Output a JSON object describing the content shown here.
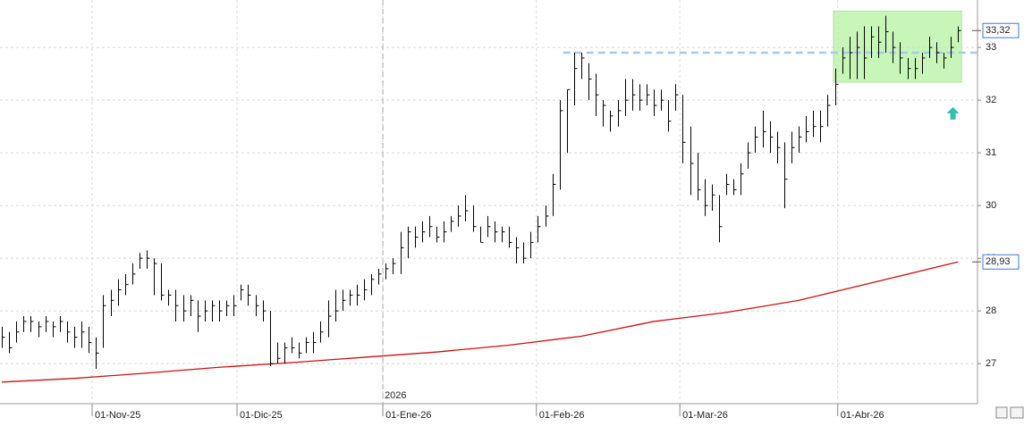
{
  "chart_data": {
    "type": "ohlc",
    "color": "#000000",
    "grid": true,
    "xlim": [
      -0.247,
      134.69
    ],
    "ylim": [
      26.24,
      33.9
    ],
    "yticks": [
      27,
      28,
      29,
      30,
      31,
      32,
      33
    ],
    "xticks": [
      {
        "value": 12.47,
        "label": "01-Nov-25"
      },
      {
        "value": 32.47,
        "label": "01-Dic-25"
      },
      {
        "value": 52.6,
        "label": "01-Ene-26"
      },
      {
        "value": 73.8,
        "label": "01-Feb-26"
      },
      {
        "value": 93.6,
        "label": "01-Mar-26"
      },
      {
        "value": 115.4,
        "label": "01-Abr-26"
      }
    ],
    "year_marker": {
      "value": 52.6,
      "label": "2026"
    },
    "x": [
      0,
      1,
      2,
      3,
      4,
      5,
      6,
      7,
      8,
      9,
      10,
      11,
      12,
      13,
      14,
      15,
      16,
      17,
      18,
      19,
      20,
      21,
      22,
      23,
      24,
      25,
      26,
      27,
      28,
      29,
      30,
      31,
      32,
      33,
      34,
      35,
      36,
      37,
      38,
      39,
      40,
      41,
      42,
      43,
      44,
      45,
      46,
      47,
      48,
      49,
      50,
      51,
      52,
      53,
      54,
      55,
      56,
      57,
      58,
      59,
      60,
      61,
      62,
      63,
      64,
      65,
      66,
      67,
      68,
      69,
      70,
      71,
      72,
      73,
      74,
      75,
      76,
      77,
      78,
      79,
      80,
      81,
      82,
      83,
      84,
      85,
      86,
      87,
      88,
      89,
      90,
      91,
      92,
      93,
      94,
      95,
      96,
      97,
      98,
      99,
      100,
      101,
      102,
      103,
      104,
      105,
      106,
      107,
      108,
      109,
      110,
      111,
      112,
      113,
      114,
      115,
      116,
      117,
      118,
      119,
      120,
      121,
      122,
      123,
      124,
      125,
      126,
      127,
      128,
      129,
      130,
      131,
      132
    ],
    "high": [
      27.7,
      27.6,
      27.8,
      27.9,
      27.9,
      27.8,
      27.9,
      27.8,
      27.9,
      27.8,
      27.7,
      27.8,
      27.7,
      27.5,
      28.3,
      28.4,
      28.6,
      28.7,
      28.9,
      29.1,
      29.15,
      29.0,
      28.9,
      28.4,
      28.4,
      28.3,
      28.3,
      28.2,
      28.2,
      28.2,
      28.2,
      28.2,
      28.3,
      28.5,
      28.5,
      28.3,
      28.2,
      28.0,
      27.4,
      27.4,
      27.5,
      27.4,
      27.5,
      27.6,
      27.8,
      28.2,
      28.4,
      28.4,
      28.4,
      28.5,
      28.6,
      28.7,
      28.8,
      28.9,
      29.0,
      29.5,
      29.6,
      29.6,
      29.7,
      29.8,
      29.6,
      29.7,
      29.8,
      30.0,
      30.2,
      30.0,
      29.6,
      29.8,
      29.7,
      29.6,
      29.6,
      29.4,
      29.3,
      29.5,
      29.8,
      30.0,
      30.6,
      32.0,
      32.2,
      32.9,
      32.9,
      32.7,
      32.5,
      32.0,
      31.8,
      32.0,
      32.4,
      32.4,
      32.3,
      32.3,
      32.2,
      32.2,
      32.0,
      32.3,
      32.1,
      31.5,
      31.0,
      30.5,
      30.4,
      30.2,
      30.6,
      30.5,
      30.8,
      31.2,
      31.5,
      31.8,
      31.6,
      31.4,
      31.2,
      31.4,
      31.5,
      31.7,
      31.8,
      31.8,
      32.1,
      32.6,
      33.0,
      33.2,
      33.3,
      33.4,
      33.4,
      33.4,
      33.6,
      33.3,
      33.1,
      32.8,
      32.8,
      32.9,
      33.2,
      33.1,
      32.9,
      33.2,
      33.4
    ],
    "low": [
      27.3,
      27.2,
      27.4,
      27.6,
      27.6,
      27.5,
      27.6,
      27.5,
      27.6,
      27.4,
      27.3,
      27.3,
      27.2,
      26.9,
      27.3,
      27.9,
      28.1,
      28.3,
      28.5,
      28.8,
      28.8,
      28.3,
      28.2,
      28.1,
      27.8,
      27.8,
      27.9,
      27.6,
      27.8,
      27.8,
      27.8,
      27.9,
      27.9,
      28.2,
      28.1,
      27.9,
      27.8,
      26.95,
      27.0,
      27.0,
      27.2,
      27.1,
      27.2,
      27.2,
      27.4,
      27.5,
      27.8,
      28.0,
      28.1,
      28.1,
      28.2,
      28.3,
      28.5,
      28.6,
      28.7,
      28.7,
      29.0,
      29.2,
      29.3,
      29.4,
      29.3,
      29.3,
      29.5,
      29.6,
      29.7,
      29.5,
      29.3,
      29.4,
      29.3,
      29.3,
      29.2,
      28.9,
      28.9,
      29.0,
      29.3,
      29.6,
      29.8,
      30.3,
      31.0,
      31.9,
      32.4,
      32.0,
      31.7,
      31.5,
      31.4,
      31.5,
      31.7,
      31.8,
      31.8,
      31.9,
      31.7,
      31.8,
      31.4,
      31.8,
      30.8,
      30.2,
      30.1,
      29.8,
      29.9,
      29.3,
      30.2,
      30.2,
      30.2,
      30.7,
      31.0,
      31.1,
      31.0,
      30.8,
      29.95,
      30.8,
      31.0,
      31.2,
      31.3,
      31.2,
      31.5,
      31.9,
      32.5,
      32.4,
      32.4,
      32.4,
      32.8,
      32.8,
      32.9,
      32.7,
      32.5,
      32.4,
      32.4,
      32.5,
      32.8,
      32.7,
      32.6,
      32.8,
      33.1
    ],
    "close": [
      27.5,
      27.3,
      27.6,
      27.8,
      27.8,
      27.7,
      27.8,
      27.7,
      27.8,
      27.6,
      27.5,
      27.6,
      27.4,
      27.2,
      28.1,
      28.2,
      28.4,
      28.5,
      28.7,
      29.0,
      29.0,
      28.9,
      28.3,
      28.3,
      28.1,
      28.0,
      28.2,
      27.9,
      28.0,
      28.1,
      28.0,
      28.1,
      28.1,
      28.4,
      28.3,
      28.1,
      28.0,
      27.0,
      27.1,
      27.3,
      27.3,
      27.2,
      27.4,
      27.4,
      27.6,
      27.9,
      28.0,
      28.2,
      28.3,
      28.3,
      28.4,
      28.6,
      28.7,
      28.8,
      28.9,
      29.2,
      29.5,
      29.4,
      29.5,
      29.6,
      29.4,
      29.5,
      29.7,
      29.8,
      29.9,
      29.6,
      29.3,
      29.6,
      29.5,
      29.5,
      29.3,
      29.2,
      29.0,
      29.3,
      29.6,
      29.8,
      30.4,
      31.8,
      32.2,
      32.6,
      32.8,
      32.4,
      32.1,
      31.9,
      31.7,
      31.8,
      32.0,
      32.1,
      32.0,
      32.1,
      31.9,
      32.0,
      31.6,
      32.1,
      31.2,
      30.8,
      30.3,
      30.0,
      30.2,
      29.6,
      30.4,
      30.3,
      30.6,
      31.0,
      31.3,
      31.4,
      31.3,
      31.1,
      30.5,
      31.1,
      31.3,
      31.4,
      31.5,
      31.5,
      31.9,
      32.3,
      32.8,
      32.9,
      33.0,
      32.8,
      33.2,
      33.1,
      33.3,
      33.0,
      32.8,
      32.6,
      32.6,
      32.8,
      33.0,
      32.9,
      32.8,
      33.0,
      33.32
    ],
    "moving_average": {
      "color": "#cc1010",
      "x": [
        0,
        10,
        20,
        30,
        40,
        50,
        60,
        70,
        80,
        90,
        100,
        110,
        120,
        132
      ],
      "values": [
        26.65,
        26.72,
        26.82,
        26.93,
        27.02,
        27.12,
        27.22,
        27.35,
        27.52,
        27.8,
        27.97,
        28.2,
        28.53,
        28.93
      ]
    },
    "reference_line": {
      "value": 32.9,
      "x_start": 77.5,
      "color": "#a8c8f0"
    },
    "highlight": {
      "xlim": [
        114.8,
        132.5
      ],
      "ylim": [
        32.34,
        33.69
      ],
      "color": "#c8f5b8"
    },
    "arrow": {
      "x": 131.3,
      "y": 31.75,
      "color": "#30c0b0"
    },
    "last_labels": [
      {
        "value": 33.32,
        "label": "33,32",
        "color": "#3a7ad8"
      },
      {
        "value": 28.93,
        "label": "28,93",
        "color": "#3a7ad8"
      }
    ]
  }
}
